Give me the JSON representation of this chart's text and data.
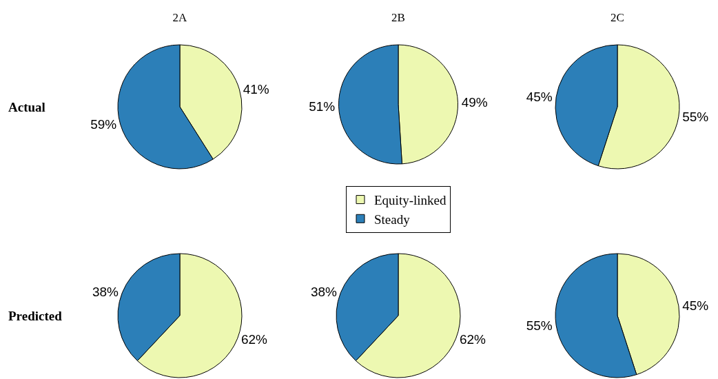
{
  "chart_data": [
    {
      "type": "pie",
      "title": "2A",
      "ylabel": "Actual",
      "categories": [
        null,
        null
      ],
      "values": [
        41,
        59
      ],
      "value_labels": [
        "41%",
        "59%"
      ],
      "colors": [
        "#edf8b1",
        "#2c7fb8"
      ]
    },
    {
      "type": "pie",
      "title": "2B",
      "categories": [
        "Equity-linked",
        "Steady"
      ],
      "values": [
        49,
        51
      ],
      "value_labels": [
        "49%",
        "51%"
      ],
      "colors": [
        "#edf8b1",
        "#2c7fb8"
      ],
      "legend": "bottom"
    },
    {
      "type": "pie",
      "title": "2C",
      "categories": [
        null,
        null
      ],
      "values": [
        55,
        45
      ],
      "value_labels": [
        "55%",
        "45%"
      ],
      "colors": [
        "#edf8b1",
        "#2c7fb8"
      ]
    },
    {
      "type": "pie",
      "ylabel": "Predicted",
      "categories": [
        null,
        null
      ],
      "values": [
        62,
        38
      ],
      "value_labels": [
        "62%",
        "38%"
      ],
      "colors": [
        "#edf8b1",
        "#2c7fb8"
      ]
    },
    {
      "type": "pie",
      "categories": [
        null,
        null
      ],
      "values": [
        62,
        38
      ],
      "value_labels": [
        "62%",
        "38%"
      ],
      "colors": [
        "#edf8b1",
        "#2c7fb8"
      ]
    },
    {
      "type": "pie",
      "categories": [
        null,
        null
      ],
      "values": [
        45,
        55
      ],
      "value_labels": [
        "45%",
        "55%"
      ],
      "colors": [
        "#edf8b1",
        "#2c7fb8"
      ]
    }
  ]
}
